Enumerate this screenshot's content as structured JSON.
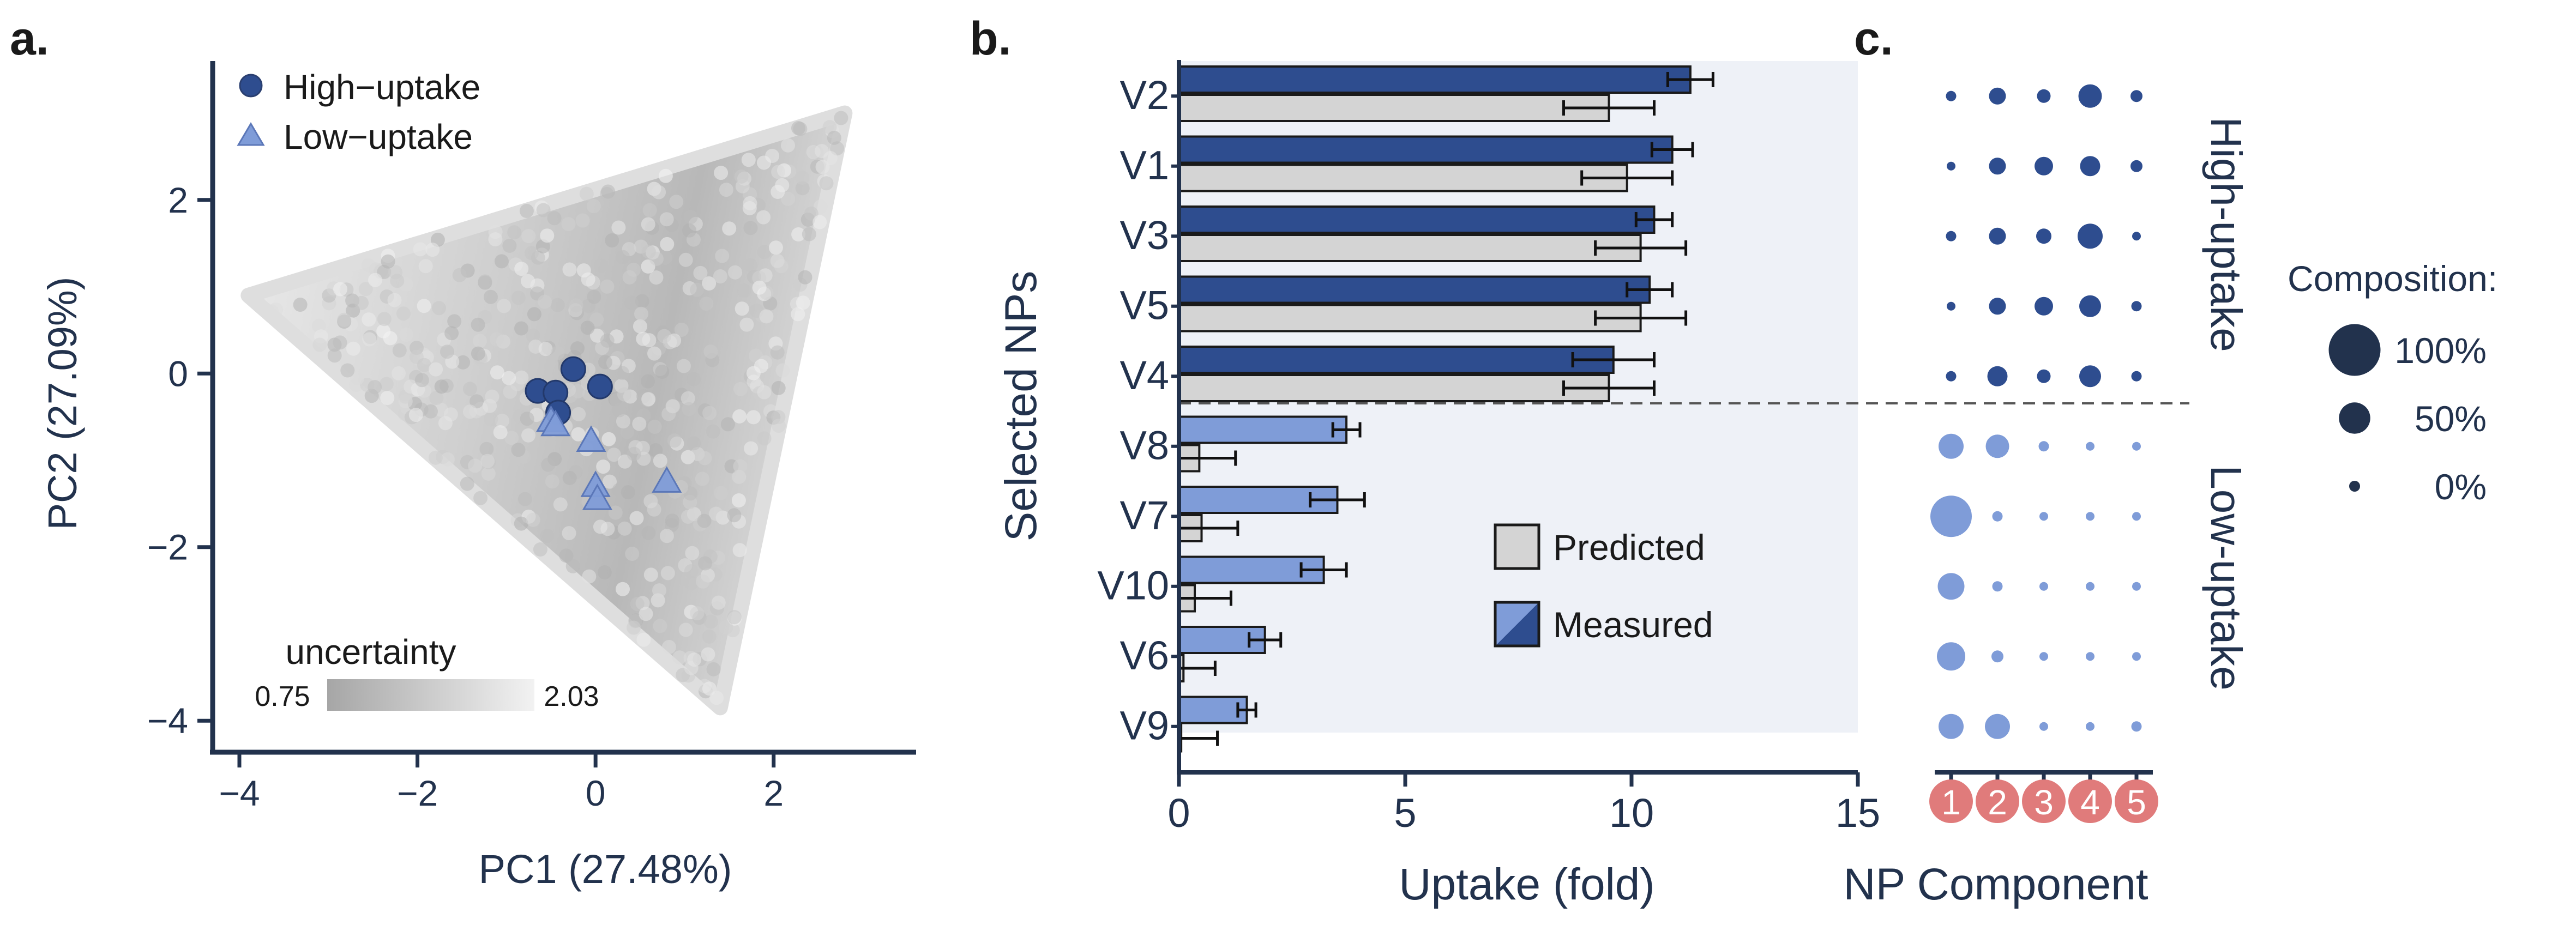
{
  "panel_labels": {
    "a": "a.",
    "b": "b.",
    "c": "c."
  },
  "chart_data": [
    {
      "panel": "a",
      "type": "scatter",
      "xlabel": "PC1 (27.48%)",
      "ylabel": "PC2 (27.09%)",
      "xlim": [
        -4.3,
        3.6
      ],
      "ylim": [
        -4.3,
        3.6
      ],
      "xticks": [
        -4,
        -2,
        0,
        2
      ],
      "yticks": [
        -4,
        -2,
        0,
        2
      ],
      "tick_labels": {
        "m4": "−4",
        "m2": "−2",
        "z": "0",
        "p2": "2"
      },
      "grid": false,
      "legend": {
        "position": "top-left",
        "high_label": "High−uptake",
        "low_label": "Low−uptake"
      },
      "colorbar": {
        "title": "uncertainty",
        "min_label": "0.75",
        "max_label": "2.03",
        "min": 0.75,
        "max": 2.03,
        "color_min": "#a6a6a6",
        "color_max": "#f2f2f2"
      },
      "background_cloud": {
        "description_vertices": [
          [
            -3.9,
            0.9
          ],
          [
            2.8,
            3.0
          ],
          [
            1.4,
            -3.85
          ]
        ],
        "vertices": [
          [
            -3.9,
            0.9
          ],
          [
            2.8,
            3.0
          ],
          [
            1.4,
            -3.85
          ]
        ],
        "uncertainty_range": [
          0.75,
          2.03
        ]
      },
      "series": [
        {
          "name": "High−uptake",
          "marker": "circle",
          "color": "#2e4d8f",
          "points": [
            [
              -0.25,
              0.05
            ],
            [
              -0.65,
              -0.2
            ],
            [
              -0.45,
              -0.22
            ],
            [
              -0.42,
              -0.45
            ],
            [
              0.05,
              -0.15
            ]
          ]
        },
        {
          "name": "Low−uptake",
          "marker": "triangle",
          "color": "#7f9cd8",
          "points": [
            [
              -0.5,
              -0.55
            ],
            [
              -0.45,
              -0.6
            ],
            [
              -0.05,
              -0.78
            ],
            [
              0.0,
              -1.3
            ],
            [
              0.02,
              -1.45
            ],
            [
              0.8,
              -1.25
            ]
          ]
        }
      ]
    },
    {
      "panel": "b",
      "type": "bar",
      "orientation": "horizontal",
      "xlabel": "Uptake (fold)",
      "ylabel": "Selected NPs",
      "xlim": [
        0,
        15
      ],
      "xticks": [
        0,
        5,
        10,
        15
      ],
      "grid": false,
      "categories": [
        "V2",
        "V1",
        "V3",
        "V5",
        "V4",
        "V8",
        "V7",
        "V10",
        "V6",
        "V9"
      ],
      "groups": {
        "High-uptake": [
          "V2",
          "V1",
          "V3",
          "V5",
          "V4"
        ],
        "Low-uptake": [
          "V8",
          "V7",
          "V10",
          "V6",
          "V9"
        ]
      },
      "series": [
        {
          "name": "Measured",
          "values": [
            11.3,
            10.9,
            10.5,
            10.4,
            9.6,
            3.7,
            3.5,
            3.2,
            1.9,
            1.5
          ],
          "errors": [
            0.5,
            0.45,
            0.4,
            0.5,
            0.9,
            0.3,
            0.6,
            0.5,
            0.35,
            0.2
          ],
          "colors": {
            "high": "#2e4d8f",
            "low": "#7f9cd8"
          }
        },
        {
          "name": "Predicted",
          "values": [
            9.5,
            9.9,
            10.2,
            10.2,
            9.5,
            0.45,
            0.5,
            0.35,
            0.1,
            0.05
          ],
          "errors": [
            1.0,
            1.0,
            1.0,
            1.0,
            1.0,
            0.8,
            0.8,
            0.8,
            0.7,
            0.8
          ],
          "color": "#d4d4d4"
        }
      ],
      "legend": {
        "position": "inside-lower-right",
        "predicted_label": "Predicted",
        "measured_label": "Measured"
      },
      "colors": {
        "background": "#eef1f7",
        "divider": "#555555"
      }
    },
    {
      "panel": "c",
      "type": "dot-matrix",
      "xlabel": "NP Component",
      "components": [
        "1",
        "2",
        "3",
        "4",
        "5"
      ],
      "component_badge_color": "#e07b7b",
      "rows": [
        "V2",
        "V1",
        "V3",
        "V5",
        "V4",
        "V8",
        "V7",
        "V10",
        "V6",
        "V9"
      ],
      "row_group_labels": {
        "high": "High-uptake",
        "low": "Low-uptake"
      },
      "values": [
        [
          0.05,
          0.25,
          0.15,
          0.45,
          0.1
        ],
        [
          0.0,
          0.25,
          0.3,
          0.35,
          0.1
        ],
        [
          0.05,
          0.25,
          0.2,
          0.5,
          0.0
        ],
        [
          0.0,
          0.25,
          0.3,
          0.4,
          0.05
        ],
        [
          0.05,
          0.35,
          0.15,
          0.4,
          0.05
        ],
        [
          0.5,
          0.45,
          0.05,
          0.0,
          0.0
        ],
        [
          1.0,
          0.05,
          0.0,
          0.0,
          0.0
        ],
        [
          0.55,
          0.05,
          0.0,
          0.0,
          0.0
        ],
        [
          0.6,
          0.1,
          0.0,
          0.0,
          0.0
        ],
        [
          0.5,
          0.5,
          0.0,
          0.0,
          0.05
        ]
      ],
      "colors": {
        "high": "#2e4d8f",
        "low": "#7f9cd8"
      },
      "legend": {
        "title": "Composition:",
        "entries": [
          {
            "label": "100%",
            "value": 1.0
          },
          {
            "label": "50%",
            "value": 0.5
          },
          {
            "label": "0%",
            "value": 0.0
          }
        ],
        "color": "#22324d"
      }
    }
  ]
}
